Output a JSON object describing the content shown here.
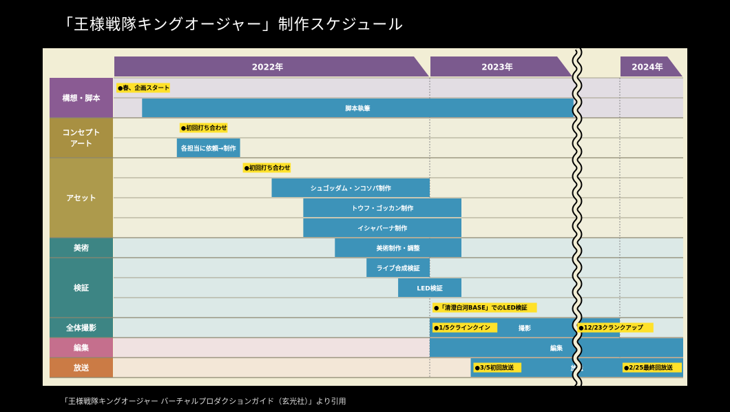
{
  "title": "「王様戦隊キングオージャー」制作スケジュール",
  "caption": "「王様戦隊キングオージャー バーチャルプロダクションガイド（玄光社）」より引用",
  "colors": {
    "header": "#7b5a8e",
    "bar": "#3d93b9",
    "milestone_bg": "#ffe12a",
    "grid": "#a4a08a"
  },
  "chart_data": {
    "type": "gantt",
    "years": [
      {
        "label": "2022年",
        "start": 2022.0,
        "end": 2023.0
      },
      {
        "label": "2023年",
        "start": 2023.0,
        "end": 2023.7
      },
      {
        "label": "2024年",
        "start": 2023.92,
        "end": 2024.2
      }
    ],
    "axis_break": 2023.78,
    "groups": [
      {
        "label": "構想・脚本",
        "lines": [
          "構想・脚本"
        ],
        "color": "#8a5b93",
        "bg": "#e2dde3",
        "rows": 2
      },
      {
        "label": "コンセプトアート",
        "lines": [
          "コンセプト",
          "アート"
        ],
        "color": "#a89042",
        "bg": "#f0eedb",
        "rows": 2
      },
      {
        "label": "アセット",
        "lines": [
          "アセット"
        ],
        "color": "#ad9a4c",
        "bg": "#f0eedb",
        "rows": 4
      },
      {
        "label": "美術",
        "lines": [
          "美術"
        ],
        "color": "#3d8584",
        "bg": "#dce9e7",
        "rows": 1
      },
      {
        "label": "検証",
        "lines": [
          "検証"
        ],
        "color": "#3d8584",
        "bg": "#dce9e7",
        "rows": 3
      },
      {
        "label": "全体撮影",
        "lines": [
          "全体撮影"
        ],
        "color": "#3d8584",
        "bg": "#dce9e7",
        "rows": 1
      },
      {
        "label": "編集",
        "lines": [
          "編集"
        ],
        "color": "#c56f8d",
        "bg": "#f0e2e1",
        "rows": 1
      },
      {
        "label": "放送",
        "lines": [
          "放送"
        ],
        "color": "#cb7b45",
        "bg": "#f3e7d7",
        "rows": 1
      }
    ],
    "bars": [
      {
        "row": 1,
        "start": 2022.09,
        "end": 2023.71,
        "label": "脚本執筆"
      },
      {
        "row": 3,
        "start": 2022.2,
        "end": 2022.4,
        "label": "各担当に依頼→制作"
      },
      {
        "row": 5,
        "start": 2022.5,
        "end": 2023.0,
        "label": "シュゴッダム・ンコソパ制作"
      },
      {
        "row": 6,
        "start": 2022.6,
        "end": 2023.1,
        "label": "トウフ・ゴッカン制作"
      },
      {
        "row": 7,
        "start": 2022.6,
        "end": 2023.1,
        "label": "イシャバーナ制作"
      },
      {
        "row": 8,
        "start": 2022.7,
        "end": 2023.1,
        "label": "美術制作・調整"
      },
      {
        "row": 9,
        "start": 2022.8,
        "end": 2023.0,
        "label": "ライブ合成検証"
      },
      {
        "row": 10,
        "start": 2022.9,
        "end": 2023.1,
        "label": "LED検証"
      },
      {
        "row": 12,
        "start": 2023.0,
        "end": 2023.92,
        "label": "撮影"
      },
      {
        "row": 13,
        "start": 2023.0,
        "end": 2024.2,
        "label": "編集"
      },
      {
        "row": 14,
        "start": 2023.15,
        "end": 2024.2,
        "label": "放送"
      }
    ],
    "milestones": [
      {
        "row": 0,
        "at": 2022.0,
        "label": "●春、企画スタート"
      },
      {
        "row": 2,
        "at": 2022.2,
        "label": "●初回打ち合わせ"
      },
      {
        "row": 4,
        "at": 2022.4,
        "label": "●初回打ち合わせ"
      },
      {
        "row": 11,
        "at": 2023.0,
        "label": "●「清澄白河BASE」でのLED検証"
      },
      {
        "row": 12,
        "at": 2023.0,
        "label": "●1/5クラインクイン"
      },
      {
        "row": 12,
        "at": 2023.73,
        "label": "●12/23クランクアップ"
      },
      {
        "row": 14,
        "at": 2023.15,
        "label": "●3/5初回放送"
      },
      {
        "row": 14,
        "at": 2023.92,
        "label": "●2/25最終回放送"
      }
    ]
  }
}
